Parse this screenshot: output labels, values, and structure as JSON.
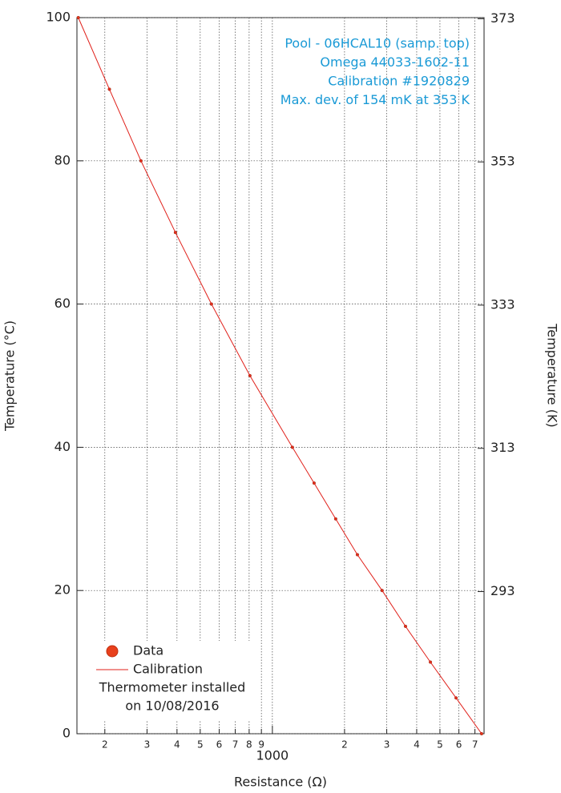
{
  "chart_data": {
    "type": "scatter",
    "xlabel": "Resistance (Ω)",
    "ylabel": "Temperature (°C)",
    "y2label": "Temperature (K)",
    "xscale": "log",
    "grid": true,
    "legend": "lower left",
    "annotations": [
      "Pool - 06HCAL10 (samp. top)",
      "Omega 44033-1602-11",
      "Calibration #1920829",
      "Max. dev. of 154 mK at 353 K"
    ],
    "legend_note": [
      "Thermometer installed",
      "on 10/08/2016"
    ],
    "series": [
      {
        "name": "Data",
        "type": "scatter",
        "color": "#e8401c",
        "x": [
          155,
          209,
          283,
          394,
          557,
          806,
          1212,
          1493,
          1837,
          2263,
          2869,
          3592,
          4563,
          5838,
          7462
        ],
        "values": [
          100,
          90,
          80,
          70,
          60,
          50,
          40,
          35,
          30,
          25,
          20,
          15,
          10,
          5,
          0
        ]
      },
      {
        "name": "Calibration",
        "type": "line",
        "color": "#e0201a",
        "x": [
          155,
          209,
          283,
          394,
          557,
          806,
          1212,
          1493,
          1837,
          2263,
          2869,
          3592,
          4563,
          5838,
          7462
        ],
        "values": [
          100,
          90,
          80,
          70,
          60,
          50,
          40,
          35,
          30,
          25,
          20,
          15,
          10,
          5,
          0
        ]
      }
    ],
    "xlim": [
      153,
      7640
    ],
    "xticks": [
      {
        "value": 200,
        "label": "2"
      },
      {
        "value": 300,
        "label": "3"
      },
      {
        "value": 400,
        "label": "4"
      },
      {
        "value": 500,
        "label": "5"
      },
      {
        "value": 600,
        "label": "6"
      },
      {
        "value": 700,
        "label": "7"
      },
      {
        "value": 800,
        "label": "8"
      },
      {
        "value": 900,
        "label": "9"
      },
      1000,
      {
        "value": 2000,
        "label": "2"
      },
      {
        "value": 3000,
        "label": "3"
      },
      {
        "value": 4000,
        "label": "4"
      },
      {
        "value": 5000,
        "label": "5"
      },
      {
        "value": 6000,
        "label": "6"
      },
      {
        "value": 7000,
        "label": "7"
      }
    ],
    "ylim": [
      0,
      100
    ],
    "yticks": [
      0,
      20,
      40,
      60,
      80,
      100
    ],
    "y2lim": [
      273.15,
      373.15
    ],
    "y2ticks": [
      293,
      313,
      333,
      353,
      373
    ]
  }
}
